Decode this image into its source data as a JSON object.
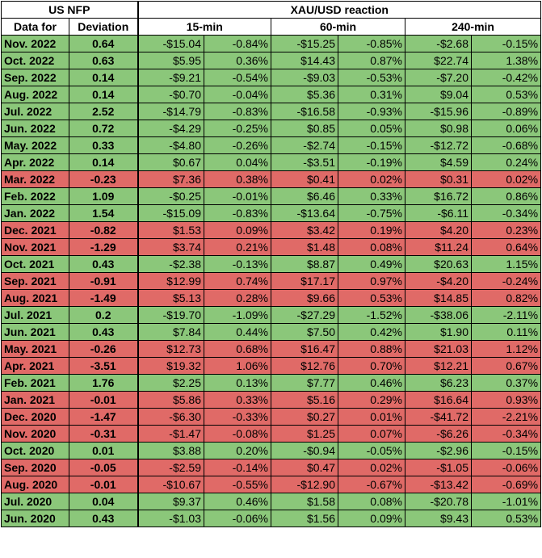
{
  "header": {
    "us_nfp": "US NFP",
    "xau_reaction": "XAU/USD reaction",
    "data_for": "Data for",
    "deviation": "Deviation",
    "m15": "15-min",
    "m60": "60-min",
    "m240": "240-min"
  },
  "colors": {
    "positive": "#8bc77a",
    "negative": "#e06a67"
  },
  "rows": [
    {
      "date": "Nov. 2022",
      "dev": "0.64",
      "d15": "-$15.04",
      "p15": "-0.84%",
      "d60": "-$15.25",
      "p60": "-0.85%",
      "d240": "-$2.68",
      "p240": "-0.15%",
      "color": "pos"
    },
    {
      "date": "Oct. 2022",
      "dev": "0.63",
      "d15": "$5.95",
      "p15": "0.36%",
      "d60": "$14.43",
      "p60": "0.87%",
      "d240": "$22.74",
      "p240": "1.38%",
      "color": "pos"
    },
    {
      "date": "Sep. 2022",
      "dev": "0.14",
      "d15": "-$9.21",
      "p15": "-0.54%",
      "d60": "-$9.03",
      "p60": "-0.53%",
      "d240": "-$7.20",
      "p240": "-0.42%",
      "color": "pos"
    },
    {
      "date": "Aug. 2022",
      "dev": "0.14",
      "d15": "-$0.70",
      "p15": "-0.04%",
      "d60": "$5.36",
      "p60": "0.31%",
      "d240": "$9.04",
      "p240": "0.53%",
      "color": "pos"
    },
    {
      "date": "Jul. 2022",
      "dev": "2.52",
      "d15": "-$14.79",
      "p15": "-0.83%",
      "d60": "-$16.58",
      "p60": "-0.93%",
      "d240": "-$15.96",
      "p240": "-0.89%",
      "color": "pos"
    },
    {
      "date": "Jun. 2022",
      "dev": "0.72",
      "d15": "-$4.29",
      "p15": "-0.25%",
      "d60": "$0.85",
      "p60": "0.05%",
      "d240": "$0.98",
      "p240": "0.06%",
      "color": "pos"
    },
    {
      "date": "May. 2022",
      "dev": "0.33",
      "d15": "-$4.80",
      "p15": "-0.26%",
      "d60": "-$2.74",
      "p60": "-0.15%",
      "d240": "-$12.72",
      "p240": "-0.68%",
      "color": "pos"
    },
    {
      "date": "Apr. 2022",
      "dev": "0.14",
      "d15": "$0.67",
      "p15": "0.04%",
      "d60": "-$3.51",
      "p60": "-0.19%",
      "d240": "$4.59",
      "p240": "0.24%",
      "color": "pos"
    },
    {
      "date": "Mar. 2022",
      "dev": "-0.23",
      "d15": "$7.36",
      "p15": "0.38%",
      "d60": "$0.41",
      "p60": "0.02%",
      "d240": "$0.31",
      "p240": "0.02%",
      "color": "neg"
    },
    {
      "date": "Feb. 2022",
      "dev": "1.09",
      "d15": "-$0.25",
      "p15": "-0.01%",
      "d60": "$6.46",
      "p60": "0.33%",
      "d240": "$16.72",
      "p240": "0.86%",
      "color": "pos"
    },
    {
      "date": "Jan. 2022",
      "dev": "1.54",
      "d15": "-$15.09",
      "p15": "-0.83%",
      "d60": "-$13.64",
      "p60": "-0.75%",
      "d240": "-$6.11",
      "p240": "-0.34%",
      "color": "pos"
    },
    {
      "date": "Dec. 2021",
      "dev": "-0.82",
      "d15": "$1.53",
      "p15": "0.09%",
      "d60": "$3.42",
      "p60": "0.19%",
      "d240": "$4.20",
      "p240": "0.23%",
      "color": "neg"
    },
    {
      "date": "Nov. 2021",
      "dev": "-1.29",
      "d15": "$3.74",
      "p15": "0.21%",
      "d60": "$1.48",
      "p60": "0.08%",
      "d240": "$11.24",
      "p240": "0.64%",
      "color": "neg"
    },
    {
      "date": "Oct. 2021",
      "dev": "0.43",
      "d15": "-$2.38",
      "p15": "-0.13%",
      "d60": "$8.87",
      "p60": "0.49%",
      "d240": "$20.63",
      "p240": "1.15%",
      "color": "pos"
    },
    {
      "date": "Sep. 2021",
      "dev": "-0.91",
      "d15": "$12.99",
      "p15": "0.74%",
      "d60": "$17.17",
      "p60": "0.97%",
      "d240": "-$4.20",
      "p240": "-0.24%",
      "color": "neg"
    },
    {
      "date": "Aug. 2021",
      "dev": "-1.49",
      "d15": "$5.13",
      "p15": "0.28%",
      "d60": "$9.66",
      "p60": "0.53%",
      "d240": "$14.85",
      "p240": "0.82%",
      "color": "neg"
    },
    {
      "date": "Jul. 2021",
      "dev": "0.2",
      "d15": "-$19.70",
      "p15": "-1.09%",
      "d60": "-$27.29",
      "p60": "-1.52%",
      "d240": "-$38.06",
      "p240": "-2.11%",
      "color": "pos"
    },
    {
      "date": "Jun. 2021",
      "dev": "0.43",
      "d15": "$7.84",
      "p15": "0.44%",
      "d60": "$7.50",
      "p60": "0.42%",
      "d240": "$1.90",
      "p240": "0.11%",
      "color": "pos"
    },
    {
      "date": "May. 2021",
      "dev": "-0.26",
      "d15": "$12.73",
      "p15": "0.68%",
      "d60": "$16.47",
      "p60": "0.88%",
      "d240": "$21.03",
      "p240": "1.12%",
      "color": "neg"
    },
    {
      "date": "Apr. 2021",
      "dev": "-3.51",
      "d15": "$19.32",
      "p15": "1.06%",
      "d60": "$12.76",
      "p60": "0.70%",
      "d240": "$12.21",
      "p240": "0.67%",
      "color": "neg"
    },
    {
      "date": "Feb. 2021",
      "dev": "1.76",
      "d15": "$2.25",
      "p15": "0.13%",
      "d60": "$7.77",
      "p60": "0.46%",
      "d240": "$6.23",
      "p240": "0.37%",
      "color": "pos"
    },
    {
      "date": "Jan. 2021",
      "dev": "-0.01",
      "d15": "$5.86",
      "p15": "0.33%",
      "d60": "$5.16",
      "p60": "0.29%",
      "d240": "$16.64",
      "p240": "0.93%",
      "color": "neg"
    },
    {
      "date": "Dec. 2020",
      "dev": "-1.47",
      "d15": "-$6.30",
      "p15": "-0.33%",
      "d60": "$0.27",
      "p60": "0.01%",
      "d240": "-$41.72",
      "p240": "-2.21%",
      "color": "neg"
    },
    {
      "date": "Nov. 2020",
      "dev": "-0.31",
      "d15": "-$1.47",
      "p15": "-0.08%",
      "d60": "$1.25",
      "p60": "0.07%",
      "d240": "-$6.26",
      "p240": "-0.34%",
      "color": "neg"
    },
    {
      "date": "Oct. 2020",
      "dev": "0.01",
      "d15": "$3.88",
      "p15": "0.20%",
      "d60": "-$0.94",
      "p60": "-0.05%",
      "d240": "-$2.96",
      "p240": "-0.15%",
      "color": "pos"
    },
    {
      "date": "Sep. 2020",
      "dev": "-0.05",
      "d15": "-$2.59",
      "p15": "-0.14%",
      "d60": "$0.47",
      "p60": "0.02%",
      "d240": "-$1.05",
      "p240": "-0.06%",
      "color": "neg"
    },
    {
      "date": "Aug. 2020",
      "dev": "-0.01",
      "d15": "-$10.67",
      "p15": "-0.55%",
      "d60": "-$12.90",
      "p60": "-0.67%",
      "d240": "-$13.42",
      "p240": "-0.69%",
      "color": "neg"
    },
    {
      "date": "Jul. 2020",
      "dev": "0.04",
      "d15": "$9.37",
      "p15": "0.46%",
      "d60": "$1.58",
      "p60": "0.08%",
      "d240": "-$20.78",
      "p240": "-1.01%",
      "color": "pos"
    },
    {
      "date": "Jun. 2020",
      "dev": "0.43",
      "d15": "-$1.03",
      "p15": "-0.06%",
      "d60": "$1.56",
      "p60": "0.09%",
      "d240": "$9.43",
      "p240": "0.53%",
      "color": "pos"
    }
  ]
}
